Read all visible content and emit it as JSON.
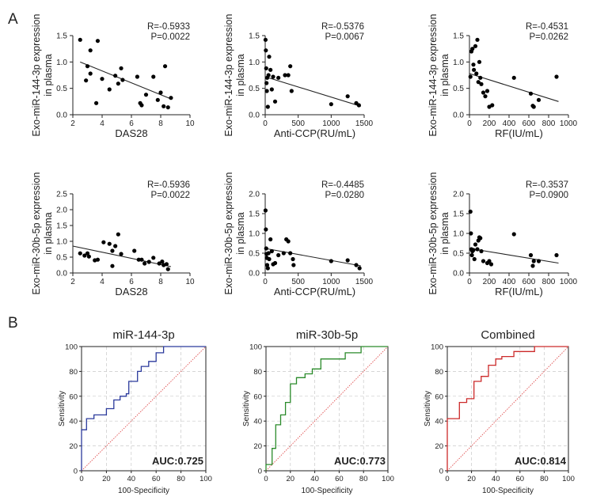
{
  "panel_labels": {
    "a": "A",
    "b": "B"
  },
  "colors": {
    "dot": "#000000",
    "axis": "#222222",
    "grid": "#c8c8c8",
    "ref": "#e05050"
  },
  "chart_data": [
    {
      "id": "s1",
      "type": "scatter",
      "ylabel": [
        "Exo-miR-144-3p expression",
        "in plasma"
      ],
      "xlabel": "DAS28",
      "x_ticks": [
        2,
        4,
        6,
        8,
        10
      ],
      "y_ticks": [
        "0.0",
        "0.5",
        "1.0",
        "1.5"
      ],
      "xlim": [
        2,
        10
      ],
      "ylim": [
        0,
        1.5
      ],
      "stats": [
        "R=-0.5933",
        "P=0.0022"
      ],
      "points": [
        [
          2.5,
          1.42
        ],
        [
          2.9,
          0.65
        ],
        [
          3.0,
          0.92
        ],
        [
          3.2,
          1.22
        ],
        [
          3.2,
          0.78
        ],
        [
          3.6,
          0.22
        ],
        [
          3.7,
          1.4
        ],
        [
          4.0,
          0.68
        ],
        [
          4.5,
          0.48
        ],
        [
          4.9,
          0.74
        ],
        [
          5.1,
          0.59
        ],
        [
          5.3,
          0.88
        ],
        [
          5.4,
          0.66
        ],
        [
          6.4,
          0.72
        ],
        [
          6.6,
          0.22
        ],
        [
          6.7,
          0.18
        ],
        [
          7.0,
          0.38
        ],
        [
          7.5,
          0.72
        ],
        [
          7.8,
          0.28
        ],
        [
          8.0,
          0.42
        ],
        [
          8.2,
          0.16
        ],
        [
          8.3,
          0.92
        ],
        [
          8.5,
          0.14
        ],
        [
          8.7,
          0.32
        ]
      ],
      "fit": [
        [
          2.5,
          1.0
        ],
        [
          8.7,
          0.3
        ]
      ]
    },
    {
      "id": "s2",
      "type": "scatter",
      "ylabel": [
        "Exo-miR-144-3p expression",
        "in plasma"
      ],
      "xlabel": "Anti-CCP(RU/mL)",
      "x_ticks": [
        0,
        500,
        1000,
        1500
      ],
      "y_ticks": [
        "0.0",
        "0.5",
        "1.0",
        "1.5"
      ],
      "xlim": [
        0,
        1500
      ],
      "ylim": [
        0,
        1.5
      ],
      "stats": [
        "R=-0.5376",
        "P=0.0067"
      ],
      "points": [
        [
          5,
          1.42
        ],
        [
          10,
          1.22
        ],
        [
          15,
          0.88
        ],
        [
          20,
          0.6
        ],
        [
          25,
          0.45
        ],
        [
          30,
          0.7
        ],
        [
          40,
          0.15
        ],
        [
          50,
          0.75
        ],
        [
          60,
          1.1
        ],
        [
          80,
          0.85
        ],
        [
          100,
          0.48
        ],
        [
          120,
          0.72
        ],
        [
          150,
          0.25
        ],
        [
          200,
          0.7
        ],
        [
          300,
          0.75
        ],
        [
          350,
          0.75
        ],
        [
          380,
          0.92
        ],
        [
          400,
          0.45
        ],
        [
          1000,
          0.2
        ],
        [
          1250,
          0.35
        ],
        [
          1380,
          0.22
        ],
        [
          1420,
          0.18
        ]
      ],
      "fit": [
        [
          0,
          0.72
        ],
        [
          1450,
          0.16
        ]
      ]
    },
    {
      "id": "s3",
      "type": "scatter",
      "ylabel": [
        "Exo-miR-144-3p expression",
        "in plasma"
      ],
      "xlabel": "RF(IU/mL)",
      "x_ticks": [
        0,
        200,
        400,
        600,
        800,
        1000
      ],
      "y_ticks": [
        "0.0",
        "0.5",
        "1.0",
        "1.5"
      ],
      "xlim": [
        0,
        1000
      ],
      "ylim": [
        0,
        1.5
      ],
      "stats": [
        "R=-0.4531",
        "P=0.0262"
      ],
      "points": [
        [
          10,
          0.72
        ],
        [
          20,
          1.2
        ],
        [
          30,
          1.25
        ],
        [
          40,
          0.95
        ],
        [
          45,
          0.85
        ],
        [
          60,
          1.3
        ],
        [
          70,
          0.78
        ],
        [
          80,
          1.42
        ],
        [
          90,
          0.62
        ],
        [
          100,
          1.0
        ],
        [
          110,
          0.7
        ],
        [
          120,
          0.58
        ],
        [
          140,
          0.42
        ],
        [
          160,
          0.35
        ],
        [
          180,
          0.45
        ],
        [
          200,
          0.15
        ],
        [
          230,
          0.18
        ],
        [
          450,
          0.7
        ],
        [
          620,
          0.4
        ],
        [
          640,
          0.17
        ],
        [
          650,
          0.15
        ],
        [
          700,
          0.28
        ],
        [
          880,
          0.72
        ]
      ],
      "fit": [
        [
          0,
          0.78
        ],
        [
          900,
          0.25
        ]
      ]
    },
    {
      "id": "s4",
      "type": "scatter",
      "ylabel": [
        "Exo-miR-30b-5p expression",
        "in plasma"
      ],
      "xlabel": "DAS28",
      "x_ticks": [
        2,
        4,
        6,
        8,
        10
      ],
      "y_ticks": [
        "0.0",
        "0.5",
        "1.0",
        "1.5",
        "2.0",
        "2.5"
      ],
      "xlim": [
        2,
        10
      ],
      "ylim": [
        0,
        2.5
      ],
      "stats": [
        "R=-0.5936",
        "P=0.0022"
      ],
      "points": [
        [
          2.5,
          0.62
        ],
        [
          2.8,
          0.55
        ],
        [
          3.0,
          0.62
        ],
        [
          3.1,
          0.52
        ],
        [
          3.5,
          0.4
        ],
        [
          3.7,
          0.42
        ],
        [
          4.1,
          0.97
        ],
        [
          4.5,
          0.92
        ],
        [
          4.7,
          0.7
        ],
        [
          4.7,
          0.22
        ],
        [
          4.9,
          0.85
        ],
        [
          5.1,
          1.22
        ],
        [
          5.3,
          0.6
        ],
        [
          6.2,
          0.7
        ],
        [
          6.5,
          0.42
        ],
        [
          6.7,
          0.42
        ],
        [
          6.9,
          0.3
        ],
        [
          7.2,
          0.35
        ],
        [
          7.5,
          0.48
        ],
        [
          7.9,
          0.3
        ],
        [
          8.1,
          0.36
        ],
        [
          8.2,
          0.25
        ],
        [
          8.4,
          0.28
        ],
        [
          8.5,
          0.12
        ]
      ],
      "fit": [
        [
          2.0,
          0.85
        ],
        [
          8.7,
          0.2
        ]
      ]
    },
    {
      "id": "s5",
      "type": "scatter",
      "ylabel": [
        "Exo-miR-30b-5p expression",
        "in plasma"
      ],
      "xlabel": "Anti-CCP(RU/mL)",
      "x_ticks": [
        0,
        500,
        1000,
        1500
      ],
      "y_ticks": [
        "0.0",
        "0.5",
        "1.0",
        "1.5",
        "2.0"
      ],
      "xlim": [
        0,
        1500
      ],
      "ylim": [
        0,
        2.0
      ],
      "stats": [
        "R=-0.4485",
        "P=0.0280"
      ],
      "points": [
        [
          5,
          1.58
        ],
        [
          10,
          1.1
        ],
        [
          15,
          0.62
        ],
        [
          20,
          0.48
        ],
        [
          25,
          0.38
        ],
        [
          30,
          0.2
        ],
        [
          40,
          0.12
        ],
        [
          50,
          0.5
        ],
        [
          60,
          0.35
        ],
        [
          80,
          0.85
        ],
        [
          100,
          0.55
        ],
        [
          120,
          0.22
        ],
        [
          150,
          0.25
        ],
        [
          200,
          0.45
        ],
        [
          280,
          0.5
        ],
        [
          320,
          0.85
        ],
        [
          350,
          0.8
        ],
        [
          380,
          0.5
        ],
        [
          420,
          0.35
        ],
        [
          430,
          0.2
        ],
        [
          1000,
          0.3
        ],
        [
          1250,
          0.32
        ],
        [
          1380,
          0.2
        ],
        [
          1430,
          0.12
        ]
      ],
      "fit": [
        [
          0,
          0.62
        ],
        [
          1450,
          0.18
        ]
      ]
    },
    {
      "id": "s6",
      "type": "scatter",
      "ylabel": [
        "Exo-miR-30b-5p expression",
        "in plasma"
      ],
      "xlabel": "RF(IU/mL)",
      "x_ticks": [
        0,
        200,
        400,
        600,
        800,
        1000
      ],
      "y_ticks": [
        "0.0",
        "0.5",
        "1.0",
        "1.5",
        "2.0"
      ],
      "xlim": [
        0,
        1000
      ],
      "ylim": [
        0,
        2.0
      ],
      "stats": [
        "R=-0.3537",
        "P=0.0900"
      ],
      "points": [
        [
          10,
          1.55
        ],
        [
          15,
          1.0
        ],
        [
          20,
          0.6
        ],
        [
          25,
          0.45
        ],
        [
          30,
          0.55
        ],
        [
          40,
          0.58
        ],
        [
          50,
          0.35
        ],
        [
          60,
          0.72
        ],
        [
          80,
          0.6
        ],
        [
          90,
          0.82
        ],
        [
          100,
          0.9
        ],
        [
          110,
          0.88
        ],
        [
          120,
          0.55
        ],
        [
          140,
          0.3
        ],
        [
          180,
          0.25
        ],
        [
          200,
          0.3
        ],
        [
          220,
          0.22
        ],
        [
          450,
          0.98
        ],
        [
          620,
          0.45
        ],
        [
          640,
          0.18
        ],
        [
          650,
          0.3
        ],
        [
          700,
          0.3
        ],
        [
          880,
          0.45
        ]
      ],
      "fit": [
        [
          0,
          0.62
        ],
        [
          900,
          0.25
        ]
      ]
    },
    {
      "id": "r1",
      "type": "line",
      "title": "miR-144-3p",
      "xlabel": "100-Specificity",
      "ylabel": "Sensitivity",
      "ticks": [
        0,
        20,
        40,
        60,
        80,
        100
      ],
      "xlim": [
        0,
        100
      ],
      "ylim": [
        0,
        100
      ],
      "auc": "AUC:0.725",
      "color": "#2b3a9c",
      "series": [
        {
          "name": "miR-144-3p",
          "points": [
            [
              0,
              0
            ],
            [
              0,
              33
            ],
            [
              4,
              33
            ],
            [
              4,
              42
            ],
            [
              10,
              42
            ],
            [
              10,
              45
            ],
            [
              20,
              45
            ],
            [
              20,
              50
            ],
            [
              26,
              50
            ],
            [
              26,
              57
            ],
            [
              31,
              57
            ],
            [
              31,
              60
            ],
            [
              36,
              60
            ],
            [
              36,
              62
            ],
            [
              38,
              62
            ],
            [
              38,
              72
            ],
            [
              45,
              72
            ],
            [
              45,
              80
            ],
            [
              48,
              80
            ],
            [
              48,
              84
            ],
            [
              54,
              84
            ],
            [
              54,
              88
            ],
            [
              60,
              88
            ],
            [
              60,
              95
            ],
            [
              66,
              95
            ],
            [
              66,
              100
            ],
            [
              100,
              100
            ]
          ]
        }
      ]
    },
    {
      "id": "r2",
      "type": "line",
      "title": "miR-30b-5p",
      "xlabel": "100-Specificity",
      "ylabel": "Sensitivity",
      "ticks": [
        0,
        20,
        40,
        60,
        80,
        100
      ],
      "xlim": [
        0,
        100
      ],
      "ylim": [
        0,
        100
      ],
      "auc": "AUC:0.773",
      "color": "#2a8a2a",
      "series": [
        {
          "name": "miR-30b-5p",
          "points": [
            [
              0,
              0
            ],
            [
              0,
              5
            ],
            [
              5,
              5
            ],
            [
              5,
              18
            ],
            [
              8,
              18
            ],
            [
              8,
              37
            ],
            [
              12,
              37
            ],
            [
              12,
              45
            ],
            [
              16,
              45
            ],
            [
              16,
              55
            ],
            [
              20,
              55
            ],
            [
              20,
              70
            ],
            [
              25,
              70
            ],
            [
              25,
              75
            ],
            [
              32,
              75
            ],
            [
              32,
              78
            ],
            [
              38,
              78
            ],
            [
              38,
              82
            ],
            [
              45,
              82
            ],
            [
              45,
              90
            ],
            [
              65,
              90
            ],
            [
              65,
              95
            ],
            [
              78,
              95
            ],
            [
              78,
              100
            ],
            [
              100,
              100
            ]
          ]
        }
      ]
    },
    {
      "id": "r3",
      "type": "line",
      "title": "Combined",
      "xlabel": "100-Specificity",
      "ylabel": "Sensitivity",
      "ticks": [
        0,
        20,
        40,
        60,
        80,
        100
      ],
      "xlim": [
        0,
        100
      ],
      "ylim": [
        0,
        100
      ],
      "auc": "AUC:0.814",
      "color": "#cc2a2a",
      "series": [
        {
          "name": "Combined",
          "points": [
            [
              0,
              0
            ],
            [
              0,
              42
            ],
            [
              10,
              42
            ],
            [
              10,
              55
            ],
            [
              16,
              55
            ],
            [
              16,
              58
            ],
            [
              22,
              58
            ],
            [
              22,
              72
            ],
            [
              28,
              72
            ],
            [
              28,
              76
            ],
            [
              34,
              76
            ],
            [
              34,
              85
            ],
            [
              40,
              85
            ],
            [
              40,
              90
            ],
            [
              45,
              90
            ],
            [
              45,
              92
            ],
            [
              55,
              92
            ],
            [
              55,
              96
            ],
            [
              72,
              96
            ],
            [
              72,
              100
            ],
            [
              100,
              100
            ]
          ]
        }
      ]
    }
  ]
}
